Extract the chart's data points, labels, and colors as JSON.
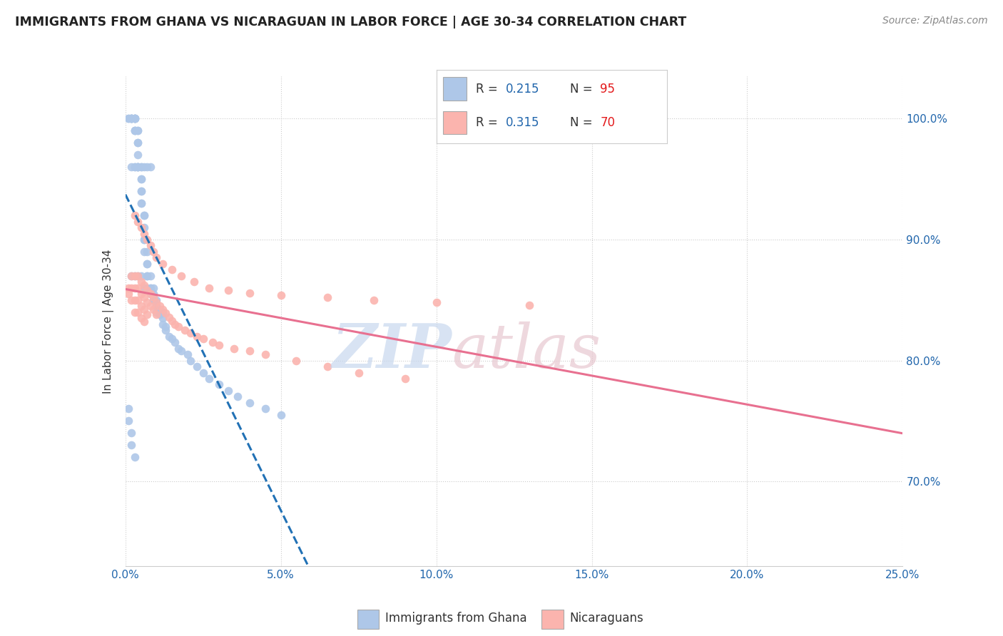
{
  "title": "IMMIGRANTS FROM GHANA VS NICARAGUAN IN LABOR FORCE | AGE 30-34 CORRELATION CHART",
  "source": "Source: ZipAtlas.com",
  "ylabel": "In Labor Force | Age 30-34",
  "xlim": [
    0.0,
    0.25
  ],
  "ylim": [
    0.63,
    1.035
  ],
  "ytick_labels": [
    "70.0%",
    "80.0%",
    "90.0%",
    "100.0%"
  ],
  "ytick_values": [
    0.7,
    0.8,
    0.9,
    1.0
  ],
  "xtick_labels": [
    "0.0%",
    "5.0%",
    "10.0%",
    "15.0%",
    "20.0%",
    "25.0%"
  ],
  "xtick_values": [
    0.0,
    0.05,
    0.1,
    0.15,
    0.2,
    0.25
  ],
  "ghana_color": "#aec7e8",
  "nicaraguan_color": "#fbb4ae",
  "ghana_trend_color": "#2171b5",
  "nicaraguan_trend_color": "#e87090",
  "ghana_R": 0.215,
  "ghana_N": 95,
  "nicaraguan_R": 0.315,
  "nicaraguan_N": 70,
  "ghana_scatter_x": [
    0.001,
    0.001,
    0.002,
    0.002,
    0.002,
    0.002,
    0.002,
    0.003,
    0.003,
    0.003,
    0.003,
    0.003,
    0.003,
    0.003,
    0.003,
    0.004,
    0.004,
    0.004,
    0.004,
    0.004,
    0.004,
    0.004,
    0.005,
    0.005,
    0.005,
    0.005,
    0.005,
    0.005,
    0.006,
    0.006,
    0.006,
    0.006,
    0.006,
    0.006,
    0.007,
    0.007,
    0.007,
    0.007,
    0.007,
    0.008,
    0.008,
    0.008,
    0.009,
    0.009,
    0.009,
    0.01,
    0.01,
    0.01,
    0.011,
    0.011,
    0.012,
    0.012,
    0.013,
    0.013,
    0.014,
    0.015,
    0.016,
    0.017,
    0.018,
    0.02,
    0.021,
    0.023,
    0.025,
    0.027,
    0.03,
    0.033,
    0.036,
    0.04,
    0.045,
    0.05,
    0.002,
    0.003,
    0.003,
    0.004,
    0.004,
    0.005,
    0.005,
    0.006,
    0.007,
    0.008,
    0.002,
    0.003,
    0.004,
    0.005,
    0.006,
    0.007,
    0.008,
    0.009,
    0.01,
    0.012,
    0.001,
    0.001,
    0.002,
    0.002,
    0.003
  ],
  "ghana_scatter_y": [
    1.0,
    1.0,
    1.0,
    1.0,
    1.0,
    1.0,
    1.0,
    1.0,
    1.0,
    1.0,
    1.0,
    1.0,
    0.99,
    0.99,
    0.99,
    0.99,
    0.99,
    0.98,
    0.98,
    0.97,
    0.96,
    0.96,
    0.95,
    0.95,
    0.94,
    0.94,
    0.93,
    0.93,
    0.92,
    0.92,
    0.91,
    0.9,
    0.9,
    0.89,
    0.89,
    0.88,
    0.88,
    0.87,
    0.87,
    0.87,
    0.86,
    0.86,
    0.86,
    0.855,
    0.85,
    0.85,
    0.845,
    0.84,
    0.84,
    0.838,
    0.835,
    0.83,
    0.828,
    0.825,
    0.82,
    0.818,
    0.815,
    0.81,
    0.808,
    0.805,
    0.8,
    0.795,
    0.79,
    0.785,
    0.78,
    0.775,
    0.77,
    0.765,
    0.76,
    0.755,
    0.96,
    0.96,
    0.96,
    0.96,
    0.96,
    0.96,
    0.96,
    0.96,
    0.96,
    0.96,
    0.87,
    0.87,
    0.87,
    0.87,
    0.86,
    0.86,
    0.855,
    0.85,
    0.845,
    0.84,
    0.76,
    0.75,
    0.74,
    0.73,
    0.72
  ],
  "nicaraguan_scatter_x": [
    0.001,
    0.001,
    0.002,
    0.002,
    0.002,
    0.003,
    0.003,
    0.003,
    0.003,
    0.004,
    0.004,
    0.004,
    0.004,
    0.005,
    0.005,
    0.005,
    0.005,
    0.006,
    0.006,
    0.006,
    0.006,
    0.007,
    0.007,
    0.007,
    0.008,
    0.008,
    0.009,
    0.009,
    0.01,
    0.01,
    0.011,
    0.012,
    0.013,
    0.014,
    0.015,
    0.016,
    0.017,
    0.019,
    0.021,
    0.023,
    0.025,
    0.028,
    0.03,
    0.035,
    0.04,
    0.045,
    0.055,
    0.065,
    0.075,
    0.09,
    0.003,
    0.004,
    0.005,
    0.006,
    0.007,
    0.008,
    0.009,
    0.01,
    0.012,
    0.015,
    0.018,
    0.022,
    0.027,
    0.033,
    0.04,
    0.05,
    0.065,
    0.08,
    0.1,
    0.13
  ],
  "nicaraguan_scatter_y": [
    0.86,
    0.855,
    0.87,
    0.86,
    0.85,
    0.87,
    0.86,
    0.85,
    0.84,
    0.87,
    0.86,
    0.85,
    0.84,
    0.865,
    0.855,
    0.845,
    0.835,
    0.862,
    0.852,
    0.842,
    0.832,
    0.858,
    0.848,
    0.838,
    0.855,
    0.845,
    0.852,
    0.842,
    0.848,
    0.838,
    0.845,
    0.842,
    0.839,
    0.836,
    0.833,
    0.83,
    0.828,
    0.825,
    0.823,
    0.82,
    0.818,
    0.815,
    0.813,
    0.81,
    0.808,
    0.805,
    0.8,
    0.795,
    0.79,
    0.785,
    0.92,
    0.915,
    0.91,
    0.905,
    0.9,
    0.895,
    0.89,
    0.885,
    0.88,
    0.875,
    0.87,
    0.865,
    0.86,
    0.858,
    0.856,
    0.854,
    0.852,
    0.85,
    0.848,
    0.846
  ],
  "watermark_zip_color": "#c8d8ee",
  "watermark_atlas_color": "#e8c8d0"
}
